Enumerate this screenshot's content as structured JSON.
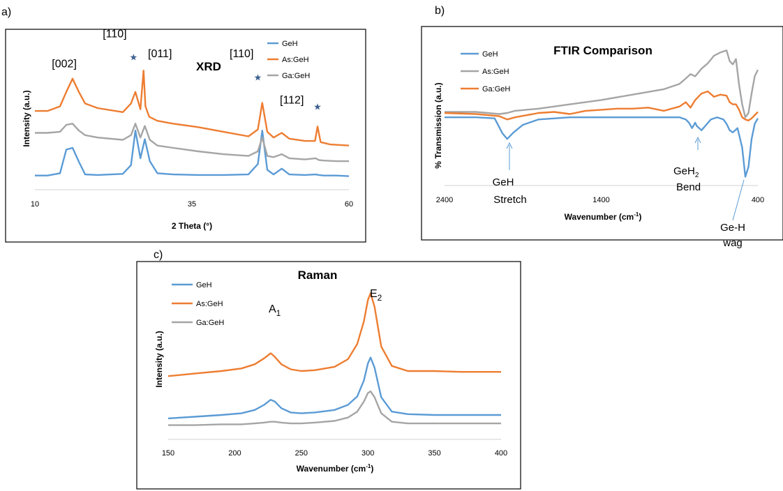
{
  "panels": {
    "a": {
      "tag": "a)"
    },
    "b": {
      "tag": "b)"
    },
    "c": {
      "tag": "c)"
    }
  },
  "colors": {
    "GeH": "#5b9bd5",
    "As:GeH": "#ed7d31",
    "Ga:GeH": "#a5a5a5"
  },
  "chart_data": [
    {
      "id": "xrd",
      "type": "line",
      "title": "XRD",
      "xlabel": "2 Theta (°)",
      "ylabel": "Intensity (a.u.)",
      "xlim": [
        10,
        60
      ],
      "xticks": [
        "10",
        "35",
        "60"
      ],
      "yticks_shown": false,
      "grid": false,
      "legend": "top-right",
      "series": [
        {
          "name": "GeH",
          "color": "#5b9bd5",
          "x": [
            10,
            12,
            14,
            15,
            16,
            17,
            18,
            20,
            24,
            25.3,
            26.0,
            26.8,
            27.5,
            28.3,
            29.5,
            32,
            36,
            40,
            44,
            45.5,
            46.2,
            47.0,
            48,
            49.3,
            50.5,
            53,
            54.7,
            55.2,
            56,
            58,
            60
          ],
          "y": [
            0.1,
            0.1,
            0.14,
            0.55,
            0.58,
            0.34,
            0.12,
            0.11,
            0.13,
            0.28,
            0.88,
            0.4,
            0.73,
            0.35,
            0.14,
            0.12,
            0.11,
            0.11,
            0.12,
            0.3,
            0.88,
            0.2,
            0.12,
            0.22,
            0.12,
            0.11,
            0.12,
            0.11,
            0.1,
            0.1,
            0.09
          ]
        },
        {
          "name": "As:GeH",
          "color": "#ed7d31",
          "x": [
            10,
            12,
            14,
            15,
            16,
            17,
            18,
            20,
            24,
            25.3,
            26.0,
            26.8,
            27.3,
            27.6,
            28.2,
            29.5,
            32,
            36,
            40,
            44,
            45.5,
            46.2,
            47.0,
            48,
            49.3,
            50.5,
            53,
            54.6,
            55.0,
            55.5,
            57,
            60
          ],
          "y": [
            1.22,
            1.22,
            1.3,
            1.55,
            1.78,
            1.55,
            1.35,
            1.27,
            1.2,
            1.35,
            1.55,
            1.25,
            1.92,
            1.3,
            1.12,
            1.05,
            1.0,
            0.94,
            0.86,
            0.78,
            0.9,
            1.36,
            0.86,
            0.76,
            0.84,
            0.74,
            0.7,
            0.7,
            0.95,
            0.68,
            0.64,
            0.62
          ]
        },
        {
          "name": "Ga:GeH",
          "color": "#a5a5a5",
          "x": [
            10,
            12,
            14,
            15,
            16,
            17,
            18,
            20,
            24,
            25.3,
            26.0,
            26.8,
            27.5,
            28.3,
            29.5,
            32,
            36,
            40,
            44,
            45.5,
            46.2,
            47.0,
            48,
            49.3,
            50.5,
            53,
            54.7,
            55.2,
            56,
            58,
            60
          ],
          "y": [
            0.84,
            0.84,
            0.86,
            0.98,
            1.0,
            0.88,
            0.8,
            0.76,
            0.72,
            0.8,
            1.0,
            0.76,
            0.96,
            0.72,
            0.62,
            0.58,
            0.52,
            0.47,
            0.44,
            0.52,
            0.76,
            0.44,
            0.42,
            0.47,
            0.4,
            0.38,
            0.4,
            0.37,
            0.36,
            0.35,
            0.35
          ]
        }
      ],
      "annotations": [
        {
          "text": "[002]",
          "x": 12.7,
          "y": 1.98
        },
        {
          "text": "[110]",
          "x": 20.8,
          "y": 2.5
        },
        {
          "text": "[011]",
          "x": 28.0,
          "y": 2.15
        },
        {
          "text": "[110]",
          "x": 41.0,
          "y": 2.15
        },
        {
          "text": "[112]",
          "x": 49.0,
          "y": 1.35
        }
      ],
      "markers": [
        {
          "x": 25.7,
          "y": 2.1
        },
        {
          "x": 45.5,
          "y": 1.75
        },
        {
          "x": 55.0,
          "y": 1.24
        }
      ]
    },
    {
      "id": "ftir",
      "type": "line",
      "title": "FTIR Comparison",
      "xlabel": "Wavenumber (cm",
      "xlabel_sup": "-1",
      "xlabel_end": ")",
      "ylabel": "% Transmission (a.u.)",
      "xlim": [
        2400,
        400
      ],
      "xticks": [
        "2400",
        "1400",
        "400"
      ],
      "yticks_shown": false,
      "grid": false,
      "legend": "top-left",
      "series": [
        {
          "name": "GeH",
          "color": "#5b9bd5",
          "x": [
            2400,
            2200,
            2080,
            2030,
            2000,
            1960,
            1900,
            1800,
            1600,
            1400,
            1200,
            1000,
            900,
            860,
            840,
            820,
            800,
            790,
            760,
            700,
            660,
            620,
            600,
            580,
            560,
            530,
            500,
            480,
            460,
            440,
            420,
            400
          ],
          "y": [
            0.98,
            0.98,
            0.97,
            0.83,
            0.78,
            0.84,
            0.91,
            0.96,
            0.98,
            0.98,
            0.98,
            0.98,
            0.98,
            0.96,
            0.93,
            0.88,
            0.93,
            0.9,
            0.86,
            0.96,
            0.98,
            0.96,
            0.92,
            0.86,
            0.84,
            0.88,
            0.7,
            0.43,
            0.52,
            0.78,
            0.92,
            0.97
          ]
        },
        {
          "name": "As:GeH",
          "color": "#a5a5a5",
          "x": [
            2400,
            2200,
            2050,
            2000,
            1950,
            1800,
            1600,
            1400,
            1200,
            1000,
            900,
            860,
            830,
            800,
            760,
            720,
            680,
            640,
            600,
            580,
            560,
            540,
            520,
            500,
            480,
            460,
            440,
            420,
            400
          ],
          "y": [
            1.03,
            1.03,
            1.01,
            1.02,
            1.04,
            1.06,
            1.1,
            1.14,
            1.19,
            1.24,
            1.29,
            1.34,
            1.38,
            1.36,
            1.43,
            1.48,
            1.55,
            1.58,
            1.6,
            1.5,
            1.47,
            1.52,
            1.28,
            1.1,
            0.98,
            1.02,
            1.2,
            1.36,
            1.42
          ]
        },
        {
          "name": "Ga:GeH",
          "color": "#ed7d31",
          "x": [
            2400,
            2200,
            2050,
            2000,
            1950,
            1800,
            1700,
            1600,
            1500,
            1400,
            1300,
            1200,
            1100,
            1000,
            900,
            860,
            830,
            800,
            760,
            720,
            680,
            640,
            600,
            580,
            560,
            540,
            520,
            500,
            480,
            460,
            440,
            420,
            400
          ],
          "y": [
            1.02,
            1.01,
            0.99,
            0.96,
            0.98,
            1.02,
            1.03,
            1.01,
            1.04,
            1.05,
            1.06,
            1.06,
            1.07,
            1.04,
            1.08,
            1.12,
            1.07,
            1.14,
            1.2,
            1.22,
            1.17,
            1.19,
            1.18,
            1.12,
            1.1,
            1.1,
            1.05,
            0.98,
            0.96,
            0.95,
            0.97,
            1.0,
            1.03
          ]
        }
      ],
      "annotations": [
        {
          "text": "GeH",
          "line2": "Stretch"
        },
        {
          "text": "GeH",
          "sub": "2",
          "line2": "Bend"
        },
        {
          "text": "Ge-H",
          "line2": "wag"
        }
      ]
    },
    {
      "id": "raman",
      "type": "line",
      "title": "Raman",
      "xlabel": "Wavenumber (cm",
      "xlabel_sup": "-1",
      "xlabel_end": ")",
      "ylabel": "Intensity (a.u.)",
      "xlim": [
        150,
        400
      ],
      "xticks": [
        "150",
        "200",
        "250",
        "300",
        "350",
        "400"
      ],
      "yticks_shown": false,
      "grid": false,
      "legend": "top-left",
      "series": [
        {
          "name": "GeH",
          "color": "#5b9bd5",
          "x": [
            150,
            170,
            190,
            205,
            215,
            222,
            227,
            230,
            235,
            242,
            250,
            260,
            275,
            285,
            292,
            297,
            300,
            302,
            305,
            310,
            318,
            330,
            350,
            370,
            400
          ],
          "y": [
            0.1,
            0.12,
            0.14,
            0.16,
            0.2,
            0.26,
            0.32,
            0.3,
            0.22,
            0.17,
            0.16,
            0.17,
            0.2,
            0.26,
            0.36,
            0.55,
            0.75,
            0.82,
            0.7,
            0.35,
            0.18,
            0.15,
            0.14,
            0.14,
            0.14
          ]
        },
        {
          "name": "As:GeH",
          "color": "#ed7d31",
          "x": [
            150,
            170,
            190,
            205,
            215,
            222,
            227,
            230,
            235,
            242,
            250,
            260,
            275,
            285,
            292,
            297,
            300,
            302,
            305,
            310,
            318,
            330,
            350,
            370,
            400
          ],
          "y": [
            0.6,
            0.63,
            0.66,
            0.69,
            0.74,
            0.81,
            0.87,
            0.83,
            0.74,
            0.68,
            0.66,
            0.67,
            0.71,
            0.8,
            0.98,
            1.25,
            1.5,
            1.58,
            1.42,
            0.95,
            0.72,
            0.66,
            0.66,
            0.65,
            0.65
          ]
        },
        {
          "name": "Ga:GeH",
          "color": "#a5a5a5",
          "x": [
            150,
            170,
            190,
            205,
            215,
            222,
            227,
            230,
            235,
            242,
            250,
            260,
            275,
            285,
            292,
            297,
            300,
            302,
            305,
            310,
            318,
            330,
            350,
            370,
            400
          ],
          "y": [
            0.02,
            0.02,
            0.03,
            0.03,
            0.04,
            0.05,
            0.06,
            0.06,
            0.05,
            0.04,
            0.04,
            0.05,
            0.07,
            0.11,
            0.18,
            0.3,
            0.4,
            0.42,
            0.35,
            0.16,
            0.06,
            0.04,
            0.04,
            0.04,
            0.04
          ]
        }
      ],
      "annotations": [
        {
          "text": "A",
          "sub": "1"
        },
        {
          "text": "E",
          "sub": "2"
        }
      ]
    }
  ]
}
